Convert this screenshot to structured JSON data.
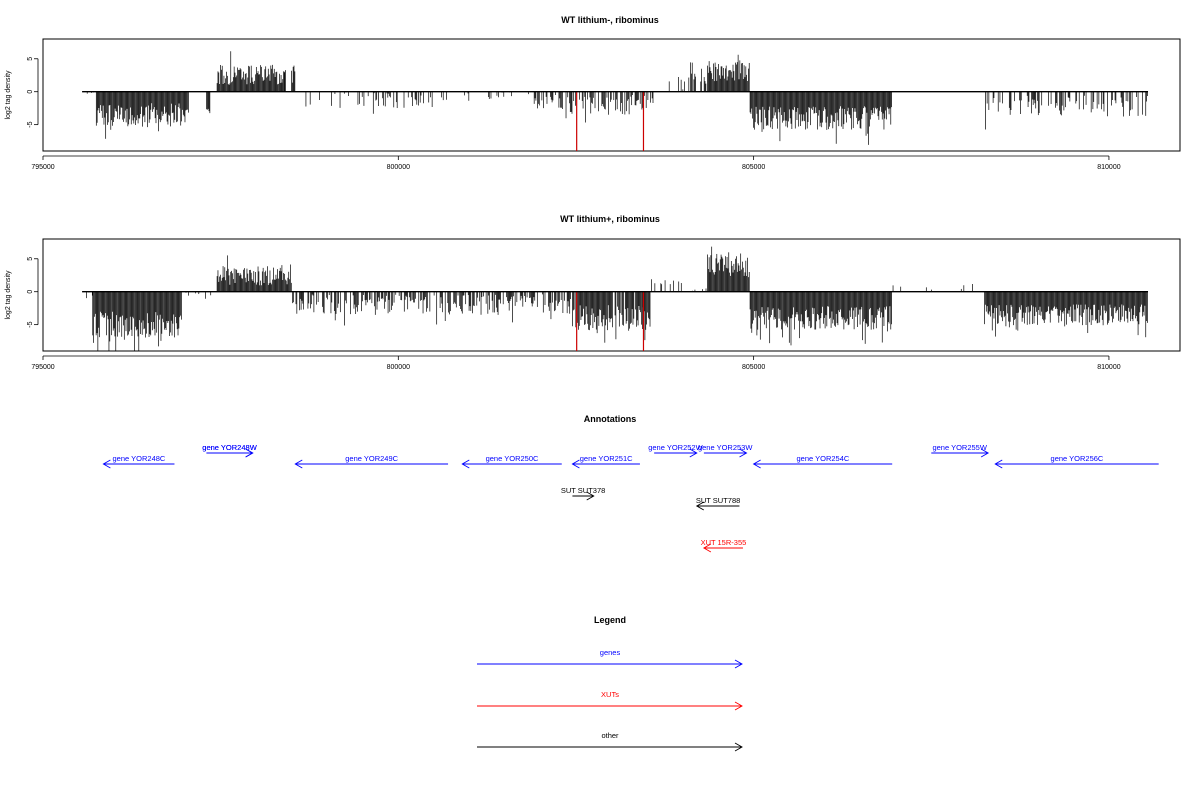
{
  "chart_data": [
    {
      "type": "bar",
      "title": "WT lithium-, ribominus",
      "ylabel": "log2 tag density",
      "xlim": [
        795000,
        811000
      ],
      "ylim": [
        -9,
        8
      ],
      "xticks": [
        795000,
        800000,
        805000,
        810000
      ],
      "xtick_labels": [
        "795000",
        "800000",
        "805000",
        "810000"
      ],
      "yticks": [
        -5,
        0,
        5
      ],
      "ytick_labels": [
        "-5",
        "0",
        "5"
      ],
      "baseline_range": [
        795550,
        810550
      ],
      "colors": {
        "default": "#000000",
        "highlight": "#cc0000"
      },
      "segments": [
        {
          "x": [
            795550,
            795750
          ],
          "sign": -1,
          "level": 0.2,
          "variation": 0.1,
          "density": 0.3
        },
        {
          "x": [
            795750,
            797050
          ],
          "sign": -1,
          "level": 3.5,
          "variation": 1.8,
          "density": 1
        },
        {
          "x": [
            797300,
            797350
          ],
          "sign": -1,
          "level": 3,
          "variation": 0.4,
          "density": 1
        },
        {
          "x": [
            797450,
            798400
          ],
          "sign": 1,
          "level": 2.6,
          "variation": 1.6,
          "density": 1
        },
        {
          "x": [
            798400,
            798550
          ],
          "sign": 1,
          "level": 2.5,
          "variation": 1.5,
          "density": 0.6
        },
        {
          "x": [
            798700,
            800500
          ],
          "sign": -1,
          "level": 1.2,
          "variation": 1.3,
          "density": 0.35
        },
        {
          "x": [
            800500,
            801900
          ],
          "sign": -1,
          "level": 0.6,
          "variation": 0.8,
          "density": 0.15
        },
        {
          "x": [
            801900,
            802300
          ],
          "sign": -1,
          "level": 1.5,
          "variation": 1.2,
          "density": 0.5
        },
        {
          "x": [
            802300,
            803600
          ],
          "sign": -1,
          "level": 2,
          "variation": 1.5,
          "density": 0.55
        },
        {
          "x": [
            803800,
            804350
          ],
          "sign": 1,
          "level": 1.5,
          "variation": 1.4,
          "density": 0.4
        },
        {
          "x": [
            804350,
            804950
          ],
          "sign": 1,
          "level": 3.2,
          "variation": 1.6,
          "density": 1
        },
        {
          "x": [
            804950,
            806950
          ],
          "sign": -1,
          "level": 4,
          "variation": 1.8,
          "density": 1
        },
        {
          "x": [
            808250,
            810550
          ],
          "sign": -1,
          "level": 2.2,
          "variation": 1.6,
          "density": 0.45
        }
      ],
      "highlight_bars": [
        {
          "x": 802510,
          "y": -9
        },
        {
          "x": 803450,
          "y": -9
        }
      ]
    },
    {
      "type": "bar",
      "title": "WT lithium+, ribominus",
      "ylabel": "log2 tag density",
      "xlim": [
        795000,
        811000
      ],
      "ylim": [
        -9,
        8
      ],
      "xticks": [
        795000,
        800000,
        805000,
        810000
      ],
      "xtick_labels": [
        "795000",
        "800000",
        "805000",
        "810000"
      ],
      "yticks": [
        -5,
        0,
        5
      ],
      "ytick_labels": [
        "-5",
        "0",
        "5"
      ],
      "baseline_range": [
        795550,
        810550
      ],
      "colors": {
        "default": "#000000",
        "highlight": "#cc0000"
      },
      "segments": [
        {
          "x": [
            795550,
            795700
          ],
          "sign": -1,
          "level": 0.6,
          "variation": 0.5,
          "density": 0.3
        },
        {
          "x": [
            795700,
            796950
          ],
          "sign": -1,
          "level": 5,
          "variation": 2,
          "density": 1
        },
        {
          "x": [
            797000,
            797400
          ],
          "sign": -1,
          "level": 0.6,
          "variation": 0.6,
          "density": 0.2
        },
        {
          "x": [
            797450,
            798500
          ],
          "sign": 1,
          "level": 2.4,
          "variation": 1.5,
          "density": 1
        },
        {
          "x": [
            798500,
            801500
          ],
          "sign": -1,
          "level": 2,
          "variation": 1.6,
          "density": 0.6
        },
        {
          "x": [
            801500,
            802450
          ],
          "sign": -1,
          "level": 2,
          "variation": 1.6,
          "density": 0.6
        },
        {
          "x": [
            802450,
            803550
          ],
          "sign": -1,
          "level": 4,
          "variation": 2,
          "density": 0.9
        },
        {
          "x": [
            803550,
            804350
          ],
          "sign": 1,
          "level": 0.8,
          "variation": 1,
          "density": 0.25
        },
        {
          "x": [
            804350,
            804950
          ],
          "sign": 1,
          "level": 4,
          "variation": 1.8,
          "density": 1
        },
        {
          "x": [
            804950,
            806950
          ],
          "sign": -1,
          "level": 4,
          "variation": 1.8,
          "density": 1
        },
        {
          "x": [
            806950,
            808150
          ],
          "sign": 1,
          "level": 0.6,
          "variation": 0.4,
          "density": 0.05
        },
        {
          "x": [
            808250,
            810550
          ],
          "sign": -1,
          "level": 3.5,
          "variation": 1.6,
          "density": 1
        }
      ],
      "highlight_bars": [
        {
          "x": 802510,
          "y": -9
        },
        {
          "x": 803450,
          "y": -9
        }
      ]
    },
    {
      "type": "annotation_track",
      "title": "Annotations",
      "xlim": [
        795000,
        811000
      ],
      "colors": {
        "genes": "#0000ff",
        "XUTs": "#ff0000",
        "other": "#000000"
      },
      "features": [
        {
          "label": "gene YOR248C",
          "start": 795850,
          "end": 796850,
          "strand": "-",
          "kind": "genes",
          "row": 1
        },
        {
          "label": "gene YOR248W",
          "start": 797300,
          "end": 797950,
          "strand": "+",
          "kind": "genes",
          "row": 0
        },
        {
          "label": "gene YOR248W",
          "start": 797300,
          "end": 797950,
          "strand": "+",
          "kind": "genes",
          "row": 0
        },
        {
          "label": "gene YOR249C",
          "start": 798550,
          "end": 800700,
          "strand": "-",
          "kind": "genes",
          "row": 1
        },
        {
          "label": "gene YOR250C",
          "start": 800900,
          "end": 802300,
          "strand": "-",
          "kind": "genes",
          "row": 1
        },
        {
          "label": "gene YOR251C",
          "start": 802450,
          "end": 803400,
          "strand": "-",
          "kind": "genes",
          "row": 1
        },
        {
          "label": "gene YOR252W",
          "start": 803600,
          "end": 804200,
          "strand": "+",
          "kind": "genes",
          "row": 0
        },
        {
          "label": "gene YOR253W",
          "start": 804300,
          "end": 804900,
          "strand": "+",
          "kind": "genes",
          "row": 0
        },
        {
          "label": "gene YOR254C",
          "start": 805000,
          "end": 806950,
          "strand": "-",
          "kind": "genes",
          "row": 1
        },
        {
          "label": "gene YOR255W",
          "start": 807500,
          "end": 808300,
          "strand": "+",
          "kind": "genes",
          "row": 0
        },
        {
          "label": "gene YOR256C",
          "start": 808400,
          "end": 810700,
          "strand": "-",
          "kind": "genes",
          "row": 1
        },
        {
          "label": "SUT SUT378",
          "start": 802450,
          "end": 802750,
          "strand": "+",
          "kind": "other",
          "row": 2
        },
        {
          "label": "SUT SUT788",
          "start": 804200,
          "end": 804800,
          "strand": "-",
          "kind": "other",
          "row": 3
        },
        {
          "label": "XUT 15R-355",
          "start": 804300,
          "end": 804850,
          "strand": "-",
          "kind": "XUTs",
          "row": 4
        }
      ]
    },
    {
      "type": "legend",
      "title": "Legend",
      "items": [
        {
          "label": "genes",
          "color": "#0000ff"
        },
        {
          "label": "XUTs",
          "color": "#ff0000"
        },
        {
          "label": "other",
          "color": "#000000"
        }
      ]
    }
  ]
}
